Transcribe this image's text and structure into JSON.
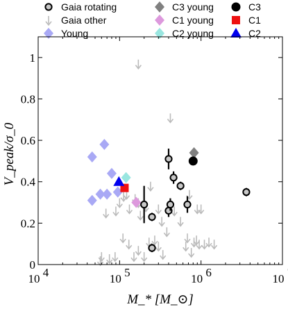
{
  "chart_data": {
    "type": "scatter",
    "title": "",
    "xlabel": "M_* [M_⊙]",
    "ylabel": "V_peak/σ_0",
    "xscale": "log",
    "xlim": [
      10000,
      10000000
    ],
    "ylim": [
      0,
      1.1
    ],
    "grid": false,
    "legend_placement": "top",
    "x_ticks": [
      10000,
      100000,
      1000000,
      10000000
    ],
    "x_tick_labels": [
      {
        "base": "10",
        "exp": "4"
      },
      {
        "base": "10",
        "exp": "5"
      },
      {
        "base": "10",
        "exp": "6"
      },
      {
        "base": "10",
        "exp": "7"
      }
    ],
    "y_ticks": [
      0,
      0.2,
      0.4,
      0.6,
      0.8,
      1
    ],
    "y_tick_labels": [
      "0",
      "0.2",
      "0.4",
      "0.6",
      "0.8",
      "1"
    ],
    "legend": [
      {
        "label": "Gaia rotating",
        "marker": "circle-outlined"
      },
      {
        "label": "Gaia other",
        "marker": "arrow-down"
      },
      {
        "label": "Young",
        "marker": "diamond"
      },
      {
        "label": "C3 young",
        "marker": "diamond"
      },
      {
        "label": "C1 young",
        "marker": "diamond"
      },
      {
        "label": "C2 young",
        "marker": "diamond"
      },
      {
        "label": "C3",
        "marker": "circle"
      },
      {
        "label": "C1",
        "marker": "square"
      },
      {
        "label": "C2",
        "marker": "triangle"
      }
    ],
    "series": [
      {
        "name": "Gaia rotating",
        "marker": "circle-outlined",
        "color": "#c8c8c8",
        "edge": "#000000",
        "points": [
          {
            "x": 200000,
            "y": 0.29,
            "err": 0.09
          },
          {
            "x": 250000,
            "y": 0.23,
            "err": 0.02
          },
          {
            "x": 250000,
            "y": 0.08,
            "err": 0.02
          },
          {
            "x": 400000,
            "y": 0.51,
            "err": 0.05
          },
          {
            "x": 400000,
            "y": 0.26,
            "err": 0.03
          },
          {
            "x": 420000,
            "y": 0.29,
            "err": 0.03
          },
          {
            "x": 460000,
            "y": 0.42,
            "err": 0.03
          },
          {
            "x": 560000,
            "y": 0.38,
            "err": 0.02
          },
          {
            "x": 680000,
            "y": 0.29,
            "err": 0.04
          },
          {
            "x": 3600000,
            "y": 0.35,
            "err": 0.02
          }
        ]
      },
      {
        "name": "Gaia other",
        "marker": "arrow-down",
        "color": "#bbbbbb",
        "points": [
          {
            "x": 68000,
            "y": 0.27
          },
          {
            "x": 90000,
            "y": 0.28
          },
          {
            "x": 100000,
            "y": 0.32
          },
          {
            "x": 112000,
            "y": 0.35
          },
          {
            "x": 122000,
            "y": 0.36
          },
          {
            "x": 132000,
            "y": 0.29
          },
          {
            "x": 155000,
            "y": 0.34
          },
          {
            "x": 170000,
            "y": 0.32
          },
          {
            "x": 180000,
            "y": 0.26
          },
          {
            "x": 210000,
            "y": 0.3
          },
          {
            "x": 240000,
            "y": 0.4
          },
          {
            "x": 300000,
            "y": 0.29
          },
          {
            "x": 330000,
            "y": 0.23
          },
          {
            "x": 380000,
            "y": 0.18
          },
          {
            "x": 470000,
            "y": 0.28
          },
          {
            "x": 560000,
            "y": 0.23
          },
          {
            "x": 720000,
            "y": 0.36
          },
          {
            "x": 900000,
            "y": 0.29
          },
          {
            "x": 1000000,
            "y": 0.29
          },
          {
            "x": 650000,
            "y": 0.11
          },
          {
            "x": 680000,
            "y": 0.15
          },
          {
            "x": 760000,
            "y": 0.08
          },
          {
            "x": 820000,
            "y": 0.13
          },
          {
            "x": 880000,
            "y": 0.14
          },
          {
            "x": 950000,
            "y": 0.12
          },
          {
            "x": 1100000,
            "y": 0.12
          },
          {
            "x": 1250000,
            "y": 0.13
          },
          {
            "x": 1450000,
            "y": 0.12
          },
          {
            "x": 110000,
            "y": 0.15
          },
          {
            "x": 130000,
            "y": 0.12
          },
          {
            "x": 150000,
            "y": 0.06
          },
          {
            "x": 170000,
            "y": 0.09
          },
          {
            "x": 200000,
            "y": 0.06
          },
          {
            "x": 230000,
            "y": 0.13
          },
          {
            "x": 270000,
            "y": 0.14
          },
          {
            "x": 300000,
            "y": 0.11
          },
          {
            "x": 340000,
            "y": 0.07
          },
          {
            "x": 60000,
            "y": 0.06
          },
          {
            "x": 75000,
            "y": 0.05
          },
          {
            "x": 88000,
            "y": 0.06
          },
          {
            "x": 58000,
            "y": 0.04
          },
          {
            "x": 170000,
            "y": 0.99
          },
          {
            "x": 420000,
            "y": 0.73
          }
        ]
      },
      {
        "name": "Young",
        "marker": "diamond",
        "color": "#a9a9f5",
        "points": [
          {
            "x": 46000,
            "y": 0.52
          },
          {
            "x": 65000,
            "y": 0.58
          },
          {
            "x": 80000,
            "y": 0.44
          },
          {
            "x": 46000,
            "y": 0.31
          },
          {
            "x": 58000,
            "y": 0.34
          },
          {
            "x": 70000,
            "y": 0.34
          },
          {
            "x": 95000,
            "y": 0.35
          }
        ]
      },
      {
        "name": "C3 young",
        "marker": "diamond",
        "color": "#808080",
        "points": [
          {
            "x": 820000,
            "y": 0.54
          }
        ]
      },
      {
        "name": "C1 young",
        "marker": "diamond",
        "color": "#dd99dd",
        "points": [
          {
            "x": 160000,
            "y": 0.3
          }
        ]
      },
      {
        "name": "C2 young",
        "marker": "diamond",
        "color": "#99e6e0",
        "points": [
          {
            "x": 120000,
            "y": 0.42
          }
        ]
      },
      {
        "name": "C3",
        "marker": "circle",
        "color": "#000000",
        "points": [
          {
            "x": 800000,
            "y": 0.5
          }
        ]
      },
      {
        "name": "C1",
        "marker": "square",
        "color": "#ee1111",
        "points": [
          {
            "x": 115000,
            "y": 0.37
          }
        ]
      },
      {
        "name": "C2",
        "marker": "triangle",
        "color": "#0000ee",
        "points": [
          {
            "x": 98000,
            "y": 0.4
          }
        ]
      }
    ]
  }
}
